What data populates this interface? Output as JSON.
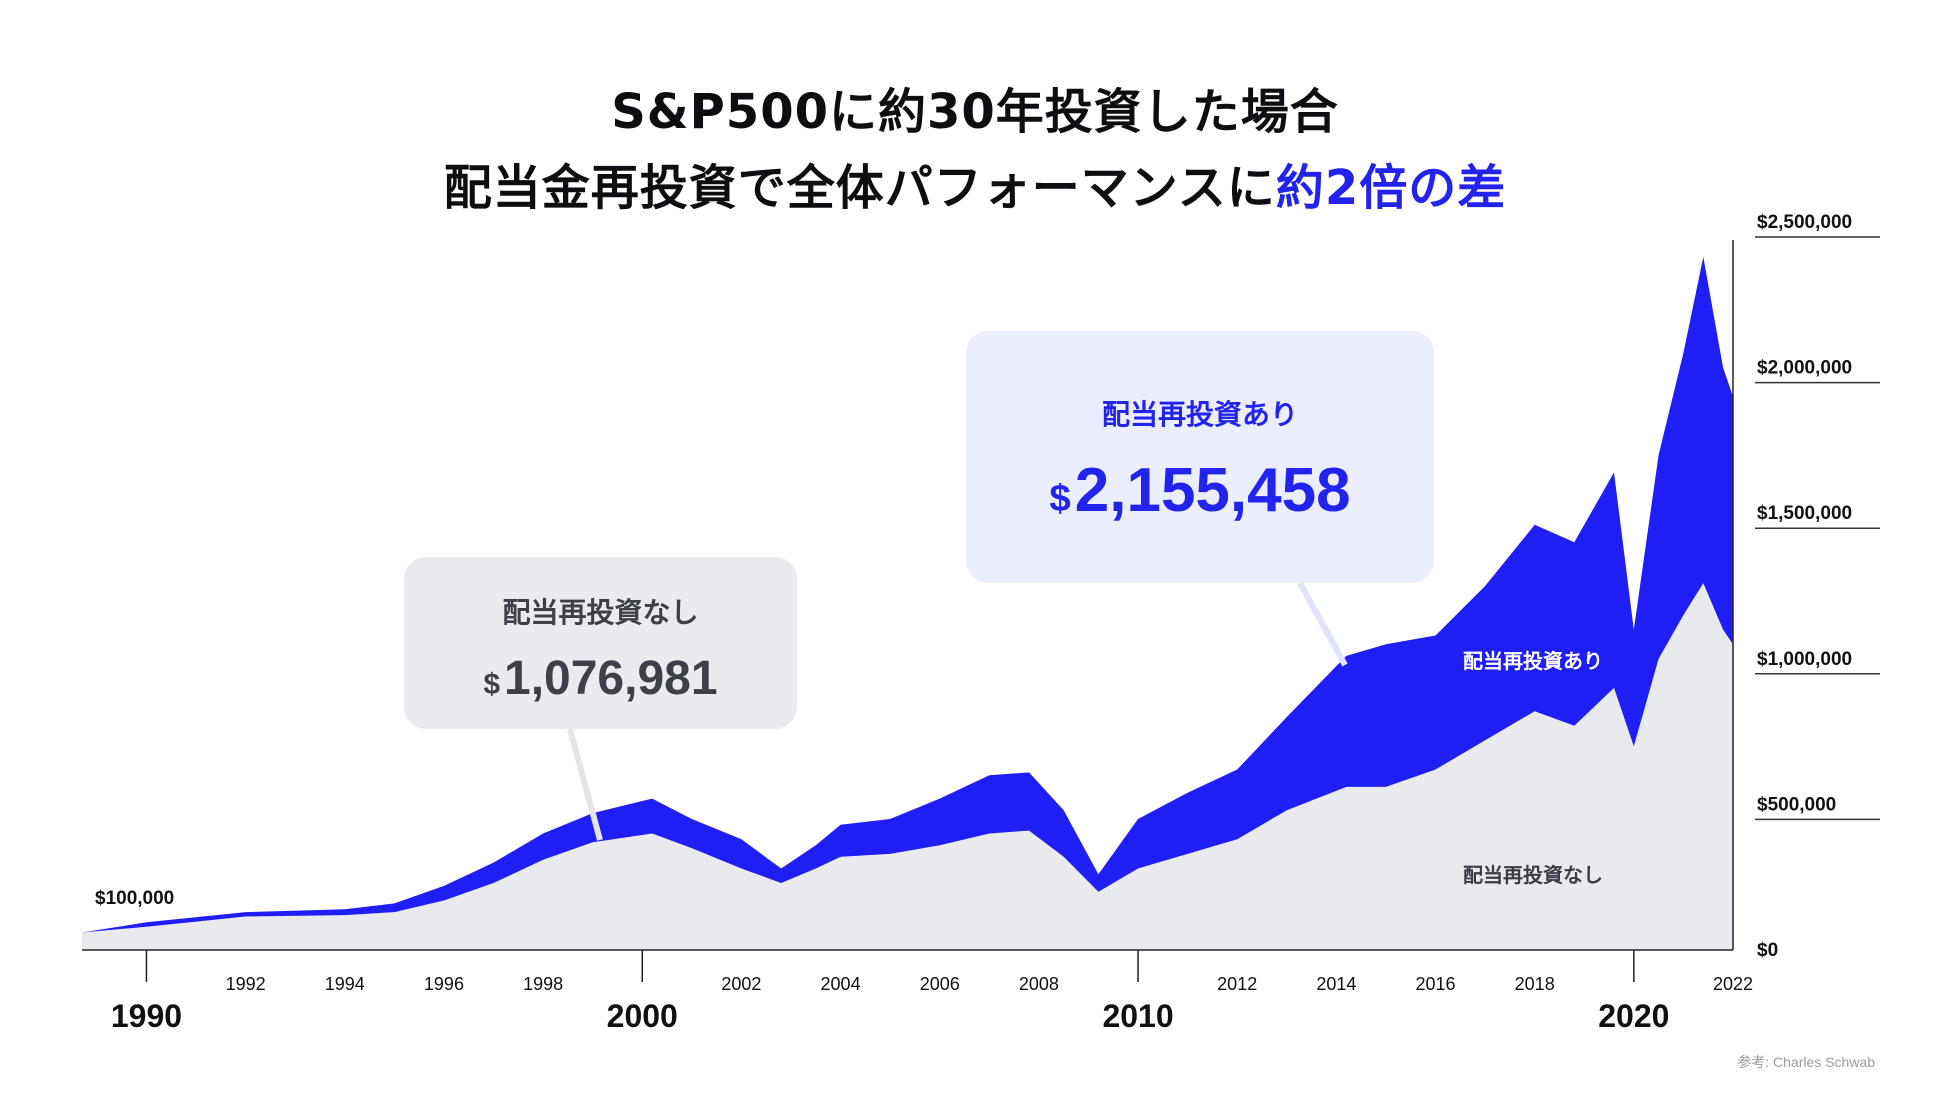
{
  "title_line1": "S&P500に約30年投資した場合",
  "title_line2_pre": "配当金再投資で全体パフォーマンスに",
  "title_line2_hl": "約2倍の差",
  "source": "参考: Charles Schwab",
  "callouts": {
    "without": {
      "label": "配当再投資なし",
      "currency": "$",
      "value": "1,076,981"
    },
    "with": {
      "label": "配当再投資あり",
      "currency": "$",
      "value": "2,155,458"
    }
  },
  "colors": {
    "with": "#1f1ff5",
    "without": "#e9eaee",
    "accent": "#2323ee"
  },
  "chart_data": {
    "type": "area",
    "x_range": [
      1988.7,
      2022
    ],
    "ylim": [
      0,
      2500000
    ],
    "yticks": [
      "$0",
      "$500,000",
      "$1,000,000",
      "$1,500,000",
      "$2,000,000",
      "$2,500,000"
    ],
    "ytick_values": [
      0,
      500000,
      1000000,
      1500000,
      2000000,
      2500000
    ],
    "xminor_ticks": [
      "1992",
      "1994",
      "1996",
      "1998",
      "2002",
      "2004",
      "2006",
      "2008",
      "2012",
      "2014",
      "2016",
      "2018",
      "2022"
    ],
    "xmajor_ticks": [
      "1990",
      "2000",
      "2010",
      "2020"
    ],
    "start_annotation": {
      "text": "$100,000",
      "value": 100000
    },
    "series": [
      {
        "name": "配当再投資あり",
        "values": [
          [
            1988.7,
            60000
          ],
          [
            1990,
            95000
          ],
          [
            1992,
            130000
          ],
          [
            1994,
            140000
          ],
          [
            1995,
            160000
          ],
          [
            1996,
            220000
          ],
          [
            1997,
            300000
          ],
          [
            1998,
            400000
          ],
          [
            1999,
            470000
          ],
          [
            2000.2,
            520000
          ],
          [
            2001,
            450000
          ],
          [
            2002,
            380000
          ],
          [
            2002.8,
            280000
          ],
          [
            2003.5,
            360000
          ],
          [
            2004,
            430000
          ],
          [
            2005,
            450000
          ],
          [
            2006,
            520000
          ],
          [
            2007,
            600000
          ],
          [
            2007.8,
            610000
          ],
          [
            2008.5,
            480000
          ],
          [
            2009.2,
            260000
          ],
          [
            2010,
            450000
          ],
          [
            2011,
            540000
          ],
          [
            2012,
            620000
          ],
          [
            2013,
            800000
          ],
          [
            2014.2,
            1010000
          ],
          [
            2015,
            1050000
          ],
          [
            2016,
            1080000
          ],
          [
            2017,
            1250000
          ],
          [
            2018,
            1460000
          ],
          [
            2018.8,
            1400000
          ],
          [
            2019.6,
            1640000
          ],
          [
            2020,
            1100000
          ],
          [
            2020.5,
            1700000
          ],
          [
            2021,
            2050000
          ],
          [
            2021.4,
            2380000
          ],
          [
            2021.8,
            2000000
          ],
          [
            2022,
            1900000
          ]
        ]
      },
      {
        "name": "配当再投資なし",
        "values": [
          [
            1988.7,
            60000
          ],
          [
            1990,
            80000
          ],
          [
            1992,
            115000
          ],
          [
            1994,
            120000
          ],
          [
            1995,
            130000
          ],
          [
            1996,
            170000
          ],
          [
            1997,
            230000
          ],
          [
            1998,
            310000
          ],
          [
            1999,
            370000
          ],
          [
            2000.2,
            400000
          ],
          [
            2001,
            350000
          ],
          [
            2002,
            280000
          ],
          [
            2002.8,
            230000
          ],
          [
            2003.5,
            280000
          ],
          [
            2004,
            320000
          ],
          [
            2005,
            330000
          ],
          [
            2006,
            360000
          ],
          [
            2007,
            400000
          ],
          [
            2007.8,
            410000
          ],
          [
            2008.5,
            320000
          ],
          [
            2009.2,
            200000
          ],
          [
            2010,
            280000
          ],
          [
            2011,
            330000
          ],
          [
            2012,
            380000
          ],
          [
            2013,
            480000
          ],
          [
            2014.2,
            560000
          ],
          [
            2015,
            560000
          ],
          [
            2016,
            620000
          ],
          [
            2017,
            720000
          ],
          [
            2018,
            820000
          ],
          [
            2018.8,
            770000
          ],
          [
            2019.6,
            900000
          ],
          [
            2020,
            700000
          ],
          [
            2020.5,
            1000000
          ],
          [
            2021,
            1150000
          ],
          [
            2021.4,
            1260000
          ],
          [
            2021.8,
            1100000
          ],
          [
            2022,
            1050000
          ]
        ]
      }
    ],
    "series_labels": {
      "with": "配当再投資あり",
      "without": "配当再投資なし"
    }
  }
}
